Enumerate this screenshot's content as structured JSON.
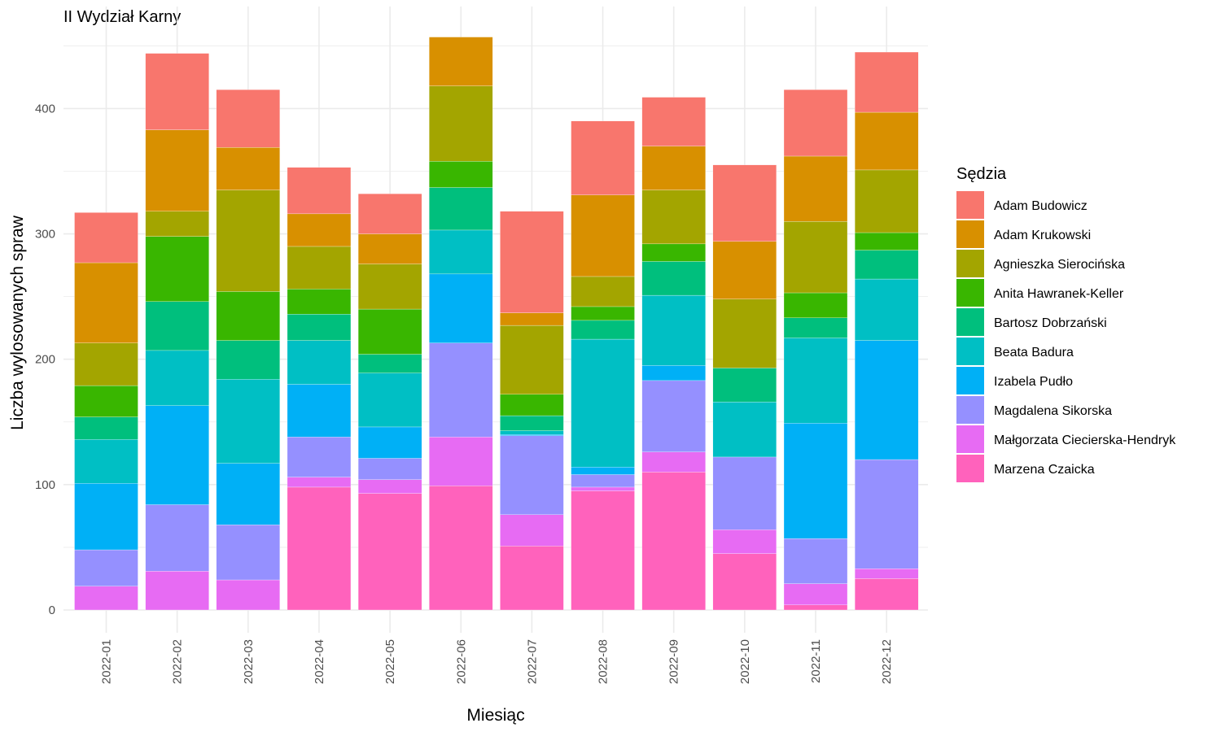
{
  "chart_data": {
    "type": "bar",
    "stacked": true,
    "title": "II Wydział Karny",
    "xlabel": "Miesiąc",
    "ylabel": "Liczba wylosowanych spraw",
    "ylim": [
      0,
      460
    ],
    "y_ticks": [
      0,
      100,
      200,
      300,
      400
    ],
    "grid": true,
    "legend_title": "Sędzia",
    "legend_position": "right",
    "categories": [
      "2022-01",
      "2022-02",
      "2022-03",
      "2022-04",
      "2022-05",
      "2022-06",
      "2022-07",
      "2022-08",
      "2022-09",
      "2022-10",
      "2022-11",
      "2022-12"
    ],
    "series": [
      {
        "name": "Adam Budowicz",
        "color": "#F8766D",
        "values": [
          40,
          61,
          46,
          37,
          32,
          0,
          81,
          59,
          39,
          61,
          53,
          48
        ]
      },
      {
        "name": "Adam Krukowski",
        "color": "#D89000",
        "values": [
          64,
          65,
          34,
          26,
          24,
          39,
          10,
          65,
          35,
          46,
          52,
          46
        ]
      },
      {
        "name": "Agnieszka Sierocińska",
        "color": "#A3A500",
        "values": [
          34,
          20,
          81,
          34,
          36,
          60,
          55,
          24,
          43,
          55,
          57,
          50
        ]
      },
      {
        "name": "Anita Hawranek-Keller",
        "color": "#39B600",
        "values": [
          25,
          52,
          39,
          20,
          36,
          21,
          17,
          11,
          14,
          0,
          20,
          14
        ]
      },
      {
        "name": "Bartosz Dobrzański",
        "color": "#00BF7D",
        "values": [
          18,
          39,
          31,
          21,
          15,
          34,
          12,
          15,
          27,
          27,
          16,
          23
        ]
      },
      {
        "name": "Beata Badura",
        "color": "#00BFC4",
        "values": [
          35,
          44,
          67,
          35,
          43,
          35,
          3,
          102,
          56,
          44,
          68,
          49
        ]
      },
      {
        "name": "Izabela Pudło",
        "color": "#00B0F6",
        "values": [
          53,
          79,
          49,
          42,
          25,
          55,
          1,
          6,
          12,
          0,
          92,
          95
        ]
      },
      {
        "name": "Magdalena Sikorska",
        "color": "#9590FF",
        "values": [
          29,
          53,
          44,
          32,
          17,
          75,
          63,
          10,
          57,
          58,
          36,
          87
        ]
      },
      {
        "name": "Małgorzata Ciecierska-Hendryk",
        "color": "#E76BF3",
        "values": [
          19,
          31,
          24,
          8,
          11,
          39,
          25,
          3,
          16,
          19,
          17,
          8
        ]
      },
      {
        "name": "Marzena Czaicka",
        "color": "#FF62BC",
        "values": [
          0,
          0,
          0,
          98,
          93,
          99,
          51,
          95,
          110,
          45,
          4,
          25
        ]
      }
    ]
  }
}
